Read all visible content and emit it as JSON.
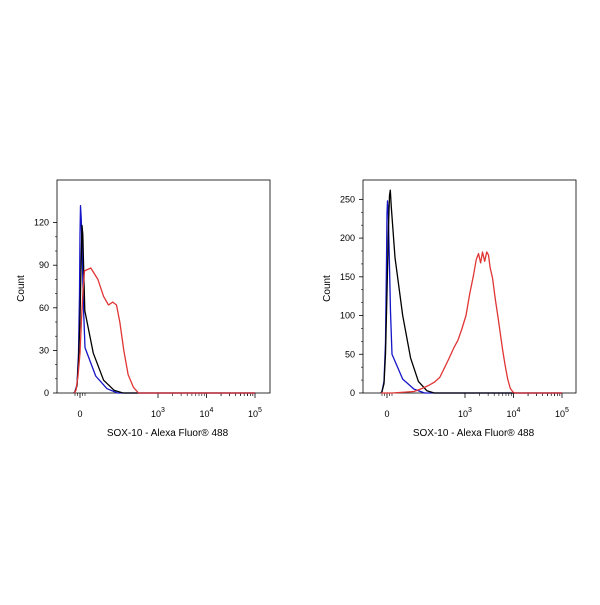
{
  "chart_data": [
    {
      "type": "line",
      "xlabel": "SOX-10 - Alexa Fluor® 488",
      "ylabel": "Count",
      "ylim": [
        0,
        150
      ],
      "yticks": [
        0,
        30,
        60,
        90,
        120
      ],
      "ytick_labels": [
        "0",
        "30",
        "60",
        "90",
        "120"
      ],
      "xticks": [
        0,
        1000,
        10000,
        100000
      ],
      "xtick_labels": [
        {
          "base": "0",
          "exp": ""
        },
        {
          "base": "10",
          "exp": "3"
        },
        {
          "base": "10",
          "exp": "4"
        },
        {
          "base": "10",
          "exp": "5"
        }
      ],
      "x_scale": "biexponential",
      "grid": false,
      "series": [
        {
          "color": "#1515c8",
          "points": [
            [
              -150,
              0
            ],
            [
              -100,
              1
            ],
            [
              -60,
              6
            ],
            [
              -30,
              28
            ],
            [
              -10,
              70
            ],
            [
              0,
              112
            ],
            [
              10,
              132
            ],
            [
              25,
              122
            ],
            [
              45,
              95
            ],
            [
              70,
              60
            ],
            [
              100,
              32
            ],
            [
              140,
              12
            ],
            [
              200,
              3
            ],
            [
              280,
              0
            ],
            [
              100000,
              0
            ]
          ]
        },
        {
          "color": "#000000",
          "points": [
            [
              -150,
              0
            ],
            [
              -100,
              1
            ],
            [
              -60,
              5
            ],
            [
              -30,
              22
            ],
            [
              0,
              52
            ],
            [
              20,
              88
            ],
            [
              40,
              118
            ],
            [
              55,
              112
            ],
            [
              70,
              92
            ],
            [
              95,
              58
            ],
            [
              130,
              28
            ],
            [
              180,
              9
            ],
            [
              250,
              2
            ],
            [
              330,
              0
            ],
            [
              100000,
              0
            ]
          ]
        },
        {
          "color": "#e03535",
          "points": [
            [
              -130,
              0
            ],
            [
              -80,
              2
            ],
            [
              -40,
              12
            ],
            [
              0,
              28
            ],
            [
              30,
              52
            ],
            [
              60,
              72
            ],
            [
              90,
              86
            ],
            [
              120,
              88
            ],
            [
              150,
              80
            ],
            [
              180,
              68
            ],
            [
              210,
              62
            ],
            [
              240,
              64
            ],
            [
              270,
              62
            ],
            [
              300,
              50
            ],
            [
              340,
              30
            ],
            [
              390,
              13
            ],
            [
              460,
              4
            ],
            [
              540,
              0
            ],
            [
              100000,
              0
            ]
          ]
        }
      ]
    },
    {
      "type": "line",
      "xlabel": "SOX-10 - Alexa Fluor® 488",
      "ylabel": "Count",
      "ylim": [
        0,
        275
      ],
      "yticks": [
        0,
        50,
        100,
        150,
        200,
        250
      ],
      "ytick_labels": [
        "0",
        "50",
        "100",
        "150",
        "200",
        "250"
      ],
      "xticks": [
        0,
        1000,
        10000,
        100000
      ],
      "xtick_labels": [
        {
          "base": "0",
          "exp": ""
        },
        {
          "base": "10",
          "exp": "3"
        },
        {
          "base": "10",
          "exp": "4"
        },
        {
          "base": "10",
          "exp": "5"
        }
      ],
      "x_scale": "biexponential",
      "grid": false,
      "series": [
        {
          "color": "#1515c8",
          "points": [
            [
              -150,
              0
            ],
            [
              -100,
              2
            ],
            [
              -60,
              15
            ],
            [
              -30,
              65
            ],
            [
              -10,
              170
            ],
            [
              0,
              232
            ],
            [
              10,
              248
            ],
            [
              25,
              232
            ],
            [
              45,
              175
            ],
            [
              70,
              105
            ],
            [
              100,
              50
            ],
            [
              140,
              18
            ],
            [
              200,
              5
            ],
            [
              280,
              0
            ],
            [
              100000,
              0
            ]
          ]
        },
        {
          "color": "#000000",
          "points": [
            [
              -150,
              0
            ],
            [
              -100,
              2
            ],
            [
              -60,
              12
            ],
            [
              -30,
              50
            ],
            [
              0,
              130
            ],
            [
              30,
              215
            ],
            [
              50,
              255
            ],
            [
              65,
              262
            ],
            [
              85,
              240
            ],
            [
              110,
              175
            ],
            [
              140,
              100
            ],
            [
              180,
              45
            ],
            [
              230,
              15
            ],
            [
              300,
              3
            ],
            [
              380,
              0
            ],
            [
              100000,
              0
            ]
          ]
        },
        {
          "color": "#e03535",
          "points": [
            [
              -150,
              0
            ],
            [
              100,
              0
            ],
            [
              200,
              2
            ],
            [
              260,
              6
            ],
            [
              320,
              10
            ],
            [
              380,
              14
            ],
            [
              450,
              20
            ],
            [
              520,
              32
            ],
            [
              600,
              44
            ],
            [
              700,
              58
            ],
            [
              800,
              68
            ],
            [
              900,
              82
            ],
            [
              1050,
              100
            ],
            [
              1250,
              128
            ],
            [
              1500,
              152
            ],
            [
              1700,
              172
            ],
            [
              1900,
              180
            ],
            [
              2100,
              168
            ],
            [
              2300,
              182
            ],
            [
              2550,
              170
            ],
            [
              2800,
              182
            ],
            [
              3050,
              178
            ],
            [
              3300,
              162
            ],
            [
              3700,
              148
            ],
            [
              4200,
              122
            ],
            [
              4800,
              98
            ],
            [
              5400,
              75
            ],
            [
              6000,
              55
            ],
            [
              6700,
              36
            ],
            [
              7600,
              18
            ],
            [
              8600,
              6
            ],
            [
              9800,
              1
            ],
            [
              11000,
              0
            ],
            [
              100000,
              0
            ]
          ]
        }
      ]
    }
  ]
}
